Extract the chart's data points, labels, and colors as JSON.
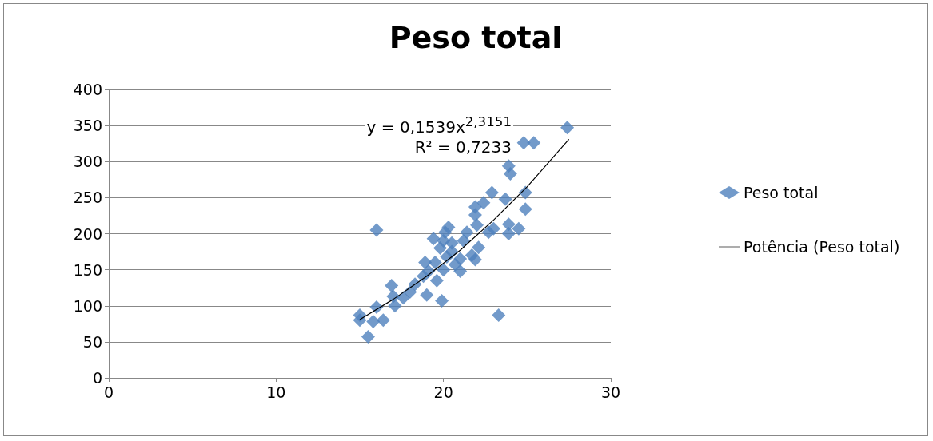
{
  "chart_data": {
    "type": "scatter",
    "title": "Peso total",
    "xlim": [
      0,
      30
    ],
    "xticks": [
      0,
      10,
      20,
      30
    ],
    "ylim": [
      0,
      400
    ],
    "yticks": [
      0,
      50,
      100,
      150,
      200,
      250,
      300,
      350,
      400
    ],
    "grid": "y",
    "legend": "right",
    "marker": "diamond",
    "annotations": [
      "y = 0,1539x$^{2,3151}$",
      "R² = 0,7233"
    ],
    "series": [
      {
        "name": "Peso total",
        "color": "#4f81bd",
        "x": [
          15,
          15,
          15.5,
          16,
          16,
          15.8,
          16.4,
          16.9,
          17,
          17.1,
          17.6,
          18,
          18.3,
          18.8,
          18.9,
          19.1,
          19,
          19.6,
          19.9,
          19.4,
          19.8,
          20.1,
          20.3,
          20.5,
          20.2,
          20.7,
          21,
          21.2,
          21.4,
          21.7,
          21.9,
          21.9,
          22,
          21.9,
          22.1,
          22.4,
          22.7,
          22.9,
          23,
          23.3,
          23.7,
          23.9,
          23.9,
          23.9,
          24,
          24.5,
          24.9,
          24.9,
          24.8,
          25.4,
          27.4,
          20,
          20.5,
          19.5,
          20,
          21
        ],
        "values": [
          87,
          80,
          57,
          205,
          98,
          78,
          80,
          128,
          113,
          100,
          111,
          119,
          130,
          141,
          160,
          148,
          115,
          135,
          107,
          193,
          180,
          202,
          209,
          187,
          168,
          157,
          148,
          190,
          202,
          170,
          237,
          226,
          212,
          164,
          181,
          243,
          202,
          257,
          207,
          87,
          248,
          213,
          200,
          294,
          283,
          207,
          234,
          257,
          326,
          326,
          347,
          190,
          175,
          160,
          150,
          165
        ]
      },
      {
        "name": "Potência (Peso total)",
        "type": "line",
        "marker": "none",
        "line_style": "solid",
        "color": "#000000",
        "x": [
          15,
          17,
          19,
          21,
          23,
          25,
          27.5
        ],
        "values": [
          81,
          109,
          141,
          177,
          219,
          265,
          331
        ]
      }
    ]
  }
}
